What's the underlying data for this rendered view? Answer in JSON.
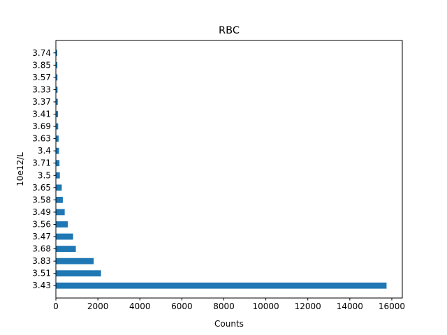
{
  "chart_data": {
    "type": "bar",
    "orientation": "horizontal",
    "title": "RBC",
    "xlabel": "Counts",
    "ylabel": "10e12/L",
    "xlim": [
      0,
      16500
    ],
    "x_ticks": [
      0,
      2000,
      4000,
      6000,
      8000,
      10000,
      12000,
      14000,
      16000
    ],
    "grid": false,
    "categories": [
      "3.43",
      "3.51",
      "3.83",
      "3.68",
      "3.47",
      "3.56",
      "3.49",
      "3.58",
      "3.65",
      "3.5",
      "3.71",
      "3.4",
      "3.63",
      "3.69",
      "3.41",
      "3.37",
      "3.33",
      "3.57",
      "3.85",
      "3.74"
    ],
    "values": [
      15750,
      2150,
      1800,
      950,
      820,
      570,
      420,
      330,
      280,
      190,
      170,
      150,
      130,
      110,
      100,
      90,
      80,
      75,
      70,
      65
    ],
    "bar_color": "#1f77b4"
  }
}
